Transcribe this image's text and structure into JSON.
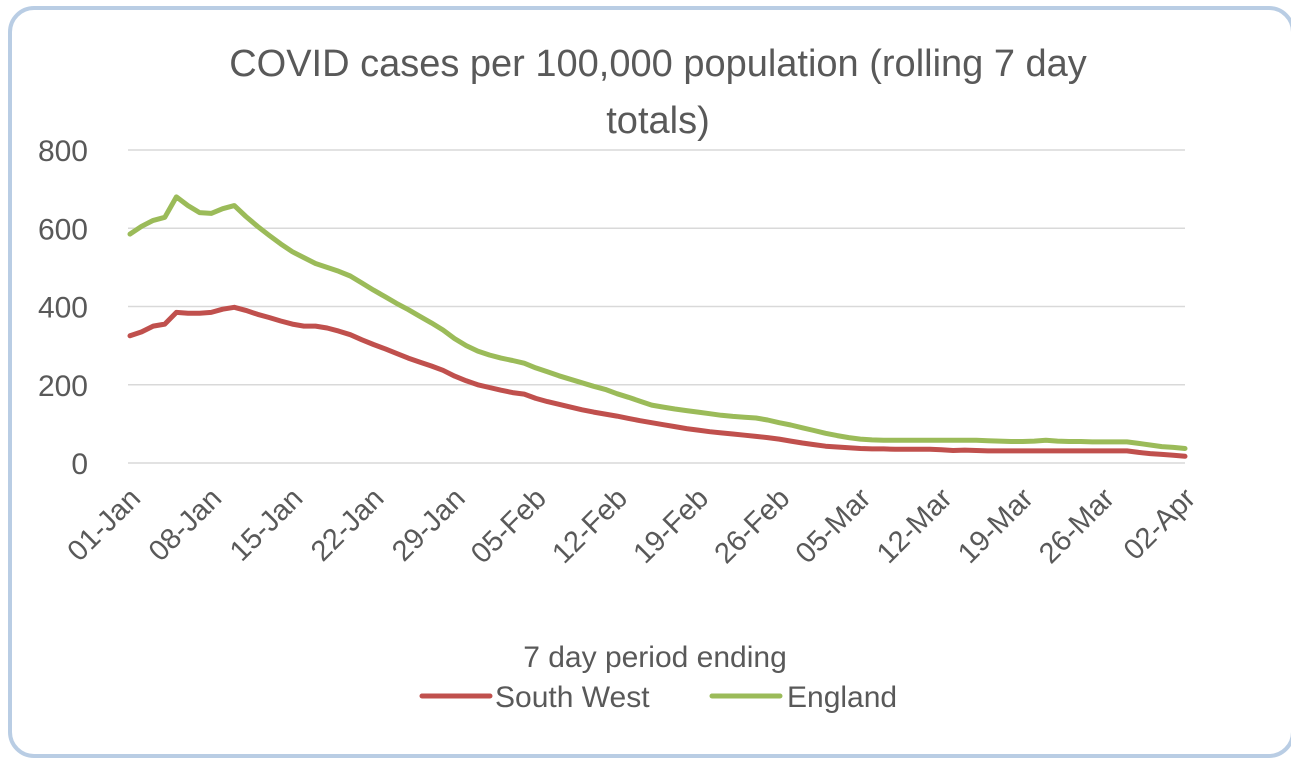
{
  "chart_data": {
    "type": "line",
    "title_lines": [
      "COVID cases per 100,000 population (rolling 7 day",
      "totals)"
    ],
    "xlabel": "7 day period ending",
    "ylabel": "",
    "ylim": [
      0,
      800
    ],
    "yticks": [
      "0",
      "200",
      "400",
      "600",
      "800"
    ],
    "x_tick_labels": [
      "01-Jan",
      "08-Jan",
      "15-Jan",
      "22-Jan",
      "29-Jan",
      "05-Feb",
      "12-Feb",
      "19-Feb",
      "26-Feb",
      "05-Mar",
      "12-Mar",
      "19-Mar",
      "26-Mar",
      "02-Apr"
    ],
    "x_range": [
      "01-Jan",
      "02-Apr"
    ],
    "grid": "horizontal",
    "legend_position": "bottom",
    "series": [
      {
        "name": "South West",
        "color": "#c0504d",
        "points": [
          [
            "01-Jan",
            325
          ],
          [
            "02-Jan",
            335
          ],
          [
            "03-Jan",
            350
          ],
          [
            "04-Jan",
            355
          ],
          [
            "05-Jan",
            385
          ],
          [
            "06-Jan",
            383
          ],
          [
            "07-Jan",
            383
          ],
          [
            "08-Jan",
            385
          ],
          [
            "09-Jan",
            393
          ],
          [
            "10-Jan",
            398
          ],
          [
            "11-Jan",
            390
          ],
          [
            "12-Jan",
            380
          ],
          [
            "13-Jan",
            372
          ],
          [
            "14-Jan",
            363
          ],
          [
            "15-Jan",
            355
          ],
          [
            "16-Jan",
            350
          ],
          [
            "17-Jan",
            350
          ],
          [
            "18-Jan",
            345
          ],
          [
            "19-Jan",
            337
          ],
          [
            "20-Jan",
            328
          ],
          [
            "21-Jan",
            315
          ],
          [
            "22-Jan",
            303
          ],
          [
            "23-Jan",
            292
          ],
          [
            "24-Jan",
            280
          ],
          [
            "25-Jan",
            268
          ],
          [
            "26-Jan",
            258
          ],
          [
            "27-Jan",
            248
          ],
          [
            "28-Jan",
            237
          ],
          [
            "29-Jan",
            222
          ],
          [
            "30-Jan",
            210
          ],
          [
            "31-Jan",
            200
          ],
          [
            "01-Feb",
            193
          ],
          [
            "02-Feb",
            186
          ],
          [
            "03-Feb",
            180
          ],
          [
            "04-Feb",
            176
          ],
          [
            "05-Feb",
            165
          ],
          [
            "06-Feb",
            157
          ],
          [
            "07-Feb",
            150
          ],
          [
            "08-Feb",
            143
          ],
          [
            "09-Feb",
            136
          ],
          [
            "10-Feb",
            130
          ],
          [
            "11-Feb",
            125
          ],
          [
            "12-Feb",
            120
          ],
          [
            "13-Feb",
            114
          ],
          [
            "14-Feb",
            108
          ],
          [
            "15-Feb",
            103
          ],
          [
            "16-Feb",
            98
          ],
          [
            "17-Feb",
            93
          ],
          [
            "18-Feb",
            88
          ],
          [
            "19-Feb",
            84
          ],
          [
            "20-Feb",
            80
          ],
          [
            "21-Feb",
            77
          ],
          [
            "22-Feb",
            74
          ],
          [
            "23-Feb",
            71
          ],
          [
            "24-Feb",
            68
          ],
          [
            "25-Feb",
            65
          ],
          [
            "26-Feb",
            61
          ],
          [
            "27-Feb",
            56
          ],
          [
            "28-Feb",
            51
          ],
          [
            "01-Mar",
            47
          ],
          [
            "02-Mar",
            43
          ],
          [
            "03-Mar",
            41
          ],
          [
            "04-Mar",
            39
          ],
          [
            "05-Mar",
            37
          ],
          [
            "06-Mar",
            36
          ],
          [
            "07-Mar",
            36
          ],
          [
            "08-Mar",
            35
          ],
          [
            "09-Mar",
            35
          ],
          [
            "10-Mar",
            35
          ],
          [
            "11-Mar",
            35
          ],
          [
            "12-Mar",
            34
          ],
          [
            "13-Mar",
            32
          ],
          [
            "14-Mar",
            33
          ],
          [
            "15-Mar",
            32
          ],
          [
            "16-Mar",
            31
          ],
          [
            "17-Mar",
            31
          ],
          [
            "18-Mar",
            31
          ],
          [
            "19-Mar",
            31
          ],
          [
            "20-Mar",
            31
          ],
          [
            "21-Mar",
            31
          ],
          [
            "22-Mar",
            31
          ],
          [
            "23-Mar",
            31
          ],
          [
            "24-Mar",
            31
          ],
          [
            "25-Mar",
            31
          ],
          [
            "26-Mar",
            31
          ],
          [
            "27-Mar",
            31
          ],
          [
            "28-Mar",
            31
          ],
          [
            "29-Mar",
            27
          ],
          [
            "30-Mar",
            24
          ],
          [
            "31-Mar",
            22
          ],
          [
            "01-Apr",
            20
          ],
          [
            "02-Apr",
            17
          ]
        ]
      },
      {
        "name": "England",
        "color": "#9bbb59",
        "points": [
          [
            "01-Jan",
            585
          ],
          [
            "02-Jan",
            605
          ],
          [
            "03-Jan",
            620
          ],
          [
            "04-Jan",
            628
          ],
          [
            "05-Jan",
            680
          ],
          [
            "06-Jan",
            658
          ],
          [
            "07-Jan",
            640
          ],
          [
            "08-Jan",
            638
          ],
          [
            "09-Jan",
            650
          ],
          [
            "10-Jan",
            658
          ],
          [
            "11-Jan",
            630
          ],
          [
            "12-Jan",
            605
          ],
          [
            "13-Jan",
            582
          ],
          [
            "14-Jan",
            560
          ],
          [
            "15-Jan",
            540
          ],
          [
            "16-Jan",
            525
          ],
          [
            "17-Jan",
            510
          ],
          [
            "18-Jan",
            500
          ],
          [
            "19-Jan",
            490
          ],
          [
            "20-Jan",
            478
          ],
          [
            "21-Jan",
            460
          ],
          [
            "22-Jan",
            442
          ],
          [
            "23-Jan",
            425
          ],
          [
            "24-Jan",
            408
          ],
          [
            "25-Jan",
            392
          ],
          [
            "26-Jan",
            375
          ],
          [
            "27-Jan",
            358
          ],
          [
            "28-Jan",
            340
          ],
          [
            "29-Jan",
            318
          ],
          [
            "30-Jan",
            300
          ],
          [
            "31-Jan",
            286
          ],
          [
            "01-Feb",
            276
          ],
          [
            "02-Feb",
            268
          ],
          [
            "03-Feb",
            262
          ],
          [
            "04-Feb",
            255
          ],
          [
            "05-Feb",
            243
          ],
          [
            "06-Feb",
            233
          ],
          [
            "07-Feb",
            223
          ],
          [
            "08-Feb",
            214
          ],
          [
            "09-Feb",
            205
          ],
          [
            "10-Feb",
            196
          ],
          [
            "11-Feb",
            188
          ],
          [
            "12-Feb",
            177
          ],
          [
            "13-Feb",
            168
          ],
          [
            "14-Feb",
            158
          ],
          [
            "15-Feb",
            148
          ],
          [
            "16-Feb",
            143
          ],
          [
            "17-Feb",
            138
          ],
          [
            "18-Feb",
            134
          ],
          [
            "19-Feb",
            130
          ],
          [
            "20-Feb",
            126
          ],
          [
            "21-Feb",
            122
          ],
          [
            "22-Feb",
            119
          ],
          [
            "23-Feb",
            117
          ],
          [
            "24-Feb",
            115
          ],
          [
            "25-Feb",
            110
          ],
          [
            "26-Feb",
            103
          ],
          [
            "27-Feb",
            97
          ],
          [
            "28-Feb",
            90
          ],
          [
            "01-Mar",
            83
          ],
          [
            "02-Mar",
            76
          ],
          [
            "03-Mar",
            70
          ],
          [
            "04-Mar",
            65
          ],
          [
            "05-Mar",
            61
          ],
          [
            "06-Mar",
            59
          ],
          [
            "07-Mar",
            58
          ],
          [
            "08-Mar",
            58
          ],
          [
            "09-Mar",
            58
          ],
          [
            "10-Mar",
            58
          ],
          [
            "11-Mar",
            58
          ],
          [
            "12-Mar",
            58
          ],
          [
            "13-Mar",
            58
          ],
          [
            "14-Mar",
            58
          ],
          [
            "15-Mar",
            58
          ],
          [
            "16-Mar",
            57
          ],
          [
            "17-Mar",
            56
          ],
          [
            "18-Mar",
            55
          ],
          [
            "19-Mar",
            55
          ],
          [
            "20-Mar",
            56
          ],
          [
            "21-Mar",
            58
          ],
          [
            "22-Mar",
            56
          ],
          [
            "23-Mar",
            55
          ],
          [
            "24-Mar",
            55
          ],
          [
            "25-Mar",
            54
          ],
          [
            "26-Mar",
            54
          ],
          [
            "27-Mar",
            54
          ],
          [
            "28-Mar",
            54
          ],
          [
            "29-Mar",
            50
          ],
          [
            "30-Mar",
            46
          ],
          [
            "31-Mar",
            42
          ],
          [
            "01-Apr",
            40
          ],
          [
            "02-Apr",
            37
          ]
        ]
      }
    ]
  }
}
